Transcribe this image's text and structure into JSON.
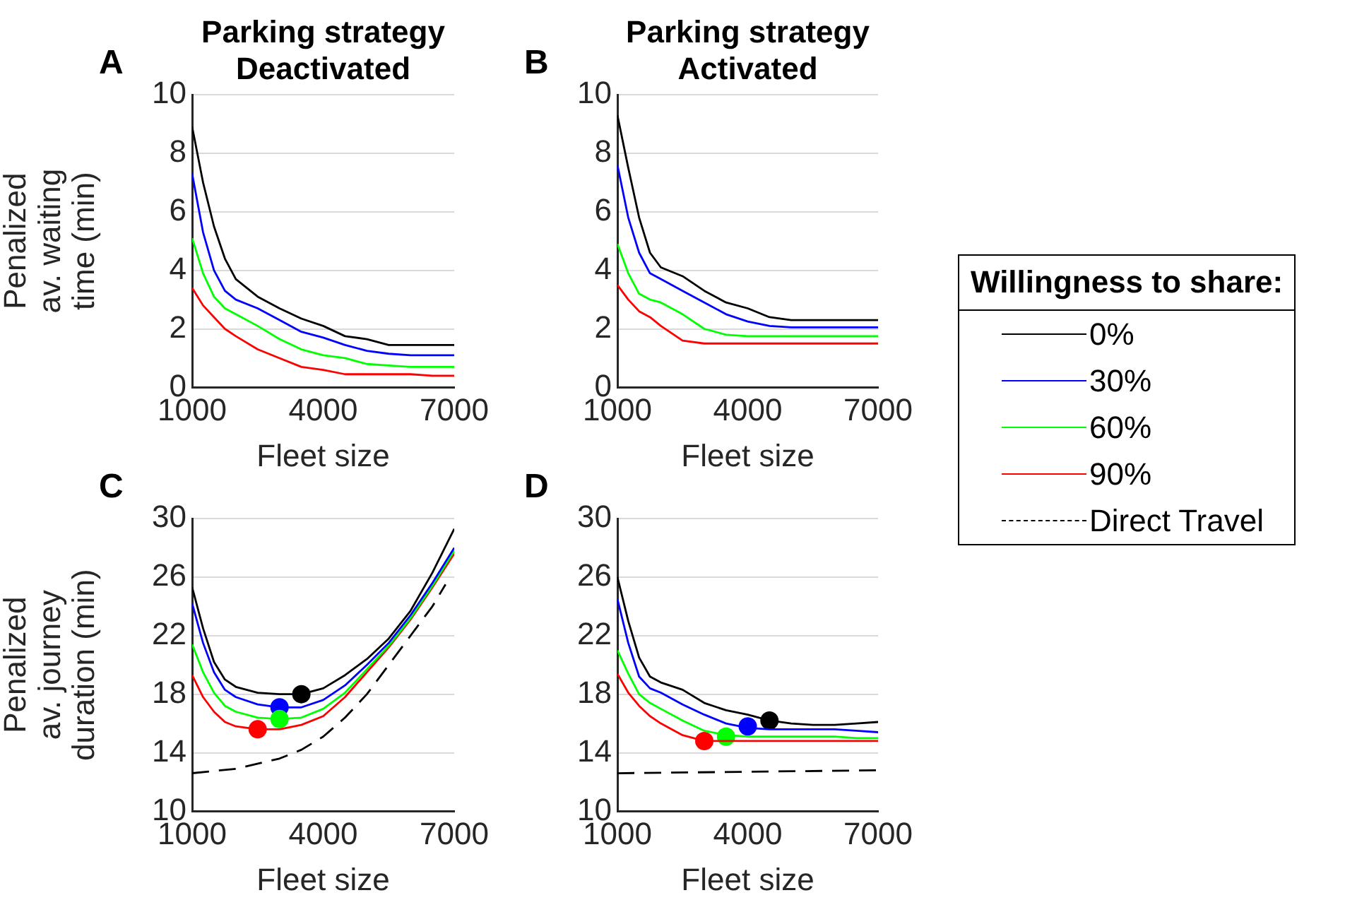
{
  "chart_data": [
    {
      "type": "line",
      "title": "Parking strategy",
      "subtitle": "Deactivated",
      "annotations": [
        "A"
      ],
      "xlabel": "Fleet size",
      "ylabel": "Penalized av. waiting time (min)",
      "xlim": [
        1000,
        7000
      ],
      "xticks": [
        1000,
        4000,
        7000
      ],
      "ylim": [
        0,
        10
      ],
      "yticks": [
        0,
        2,
        4,
        6,
        8,
        10
      ],
      "grid": "y",
      "legend": false,
      "x": [
        1000,
        1250,
        1500,
        1750,
        2000,
        2500,
        3000,
        3500,
        4000,
        4500,
        5000,
        5500,
        6000,
        6500,
        7000
      ],
      "series": [
        {
          "color": "#000000",
          "values": [
            8.9,
            7.0,
            5.5,
            4.4,
            3.7,
            3.1,
            2.7,
            2.35,
            2.1,
            1.75,
            1.65,
            1.45,
            1.45,
            1.45,
            1.45
          ]
        },
        {
          "color": "#0000ff",
          "values": [
            7.3,
            5.3,
            4.0,
            3.3,
            3.0,
            2.7,
            2.3,
            1.9,
            1.7,
            1.45,
            1.25,
            1.15,
            1.1,
            1.1,
            1.1
          ]
        },
        {
          "color": "#00ff00",
          "values": [
            5.1,
            3.9,
            3.1,
            2.7,
            2.5,
            2.1,
            1.65,
            1.3,
            1.1,
            1.0,
            0.8,
            0.75,
            0.7,
            0.7,
            0.7
          ]
        },
        {
          "color": "#ff0000",
          "values": [
            3.4,
            2.8,
            2.4,
            2.0,
            1.75,
            1.3,
            1.0,
            0.7,
            0.6,
            0.45,
            0.45,
            0.45,
            0.45,
            0.4,
            0.4
          ]
        }
      ]
    },
    {
      "type": "line",
      "title": "Parking strategy",
      "subtitle": "Activated",
      "annotations": [
        "B"
      ],
      "xlabel": "Fleet size",
      "xlim": [
        1000,
        7000
      ],
      "xticks": [
        1000,
        4000,
        7000
      ],
      "ylim": [
        0,
        10
      ],
      "yticks": [
        0,
        2,
        4,
        6,
        8,
        10
      ],
      "grid": "y",
      "legend": false,
      "x": [
        1000,
        1250,
        1500,
        1750,
        2000,
        2500,
        3000,
        3500,
        4000,
        4500,
        5000,
        5500,
        6000,
        6500,
        7000
      ],
      "series": [
        {
          "color": "#000000",
          "values": [
            9.3,
            7.5,
            5.8,
            4.6,
            4.1,
            3.8,
            3.3,
            2.9,
            2.7,
            2.4,
            2.3,
            2.3,
            2.3,
            2.3,
            2.3
          ]
        },
        {
          "color": "#0000ff",
          "values": [
            7.6,
            5.8,
            4.6,
            3.9,
            3.7,
            3.3,
            2.9,
            2.5,
            2.25,
            2.1,
            2.05,
            2.05,
            2.05,
            2.05,
            2.05
          ]
        },
        {
          "color": "#00ff00",
          "values": [
            4.9,
            3.9,
            3.2,
            3.0,
            2.9,
            2.5,
            2.0,
            1.8,
            1.75,
            1.75,
            1.75,
            1.75,
            1.75,
            1.75,
            1.75
          ]
        },
        {
          "color": "#ff0000",
          "values": [
            3.5,
            3.0,
            2.6,
            2.4,
            2.1,
            1.6,
            1.5,
            1.5,
            1.5,
            1.5,
            1.5,
            1.5,
            1.5,
            1.5,
            1.5
          ]
        }
      ]
    },
    {
      "type": "line",
      "annotations": [
        "C"
      ],
      "xlabel": "Fleet size",
      "ylabel": "Penalized av. journey duration (min)",
      "xlim": [
        1000,
        7000
      ],
      "xticks": [
        1000,
        4000,
        7000
      ],
      "ylim": [
        10,
        30
      ],
      "yticks": [
        10,
        14,
        18,
        22,
        26,
        30
      ],
      "grid": "y",
      "legend": false,
      "x": [
        1000,
        1250,
        1500,
        1750,
        2000,
        2500,
        3000,
        3500,
        4000,
        4500,
        5000,
        5500,
        6000,
        6500,
        7000
      ],
      "series": [
        {
          "color": "#000000",
          "values": [
            25.3,
            22.5,
            20.2,
            19.0,
            18.5,
            18.1,
            18.0,
            18.0,
            18.4,
            19.3,
            20.4,
            21.8,
            23.7,
            26.3,
            29.3
          ]
        },
        {
          "color": "#0000ff",
          "values": [
            24.2,
            21.5,
            19.5,
            18.3,
            17.8,
            17.3,
            17.1,
            17.1,
            17.6,
            18.6,
            20.0,
            21.5,
            23.4,
            25.6,
            28.0
          ]
        },
        {
          "color": "#00ff00",
          "values": [
            21.4,
            19.5,
            18.1,
            17.2,
            16.8,
            16.4,
            16.3,
            16.4,
            17.0,
            18.1,
            19.7,
            21.3,
            23.2,
            25.4,
            27.8
          ]
        },
        {
          "color": "#ff0000",
          "values": [
            19.3,
            17.8,
            16.8,
            16.1,
            15.8,
            15.6,
            15.6,
            15.9,
            16.5,
            17.8,
            19.5,
            21.2,
            23.1,
            25.3,
            27.6
          ]
        },
        {
          "color": "#000000",
          "line_style": "dashed",
          "x": [
            1000,
            2000,
            3000,
            3500,
            4000,
            4500,
            5000,
            5500,
            6000,
            6500,
            6800
          ],
          "values": [
            12.6,
            12.9,
            13.6,
            14.2,
            15.1,
            16.4,
            18.0,
            20.0,
            22.0,
            24.0,
            25.5
          ]
        },
        {
          "type": "scatter",
          "marker": "circle",
          "x": [
            3500,
            3000,
            3000,
            2500
          ],
          "values": [
            18.0,
            17.1,
            16.3,
            15.6
          ],
          "colors": [
            "#000000",
            "#0000ff",
            "#00ff00",
            "#ff0000"
          ]
        }
      ]
    },
    {
      "type": "line",
      "annotations": [
        "D"
      ],
      "xlabel": "Fleet size",
      "xlim": [
        1000,
        7000
      ],
      "xticks": [
        1000,
        4000,
        7000
      ],
      "ylim": [
        10,
        30
      ],
      "yticks": [
        10,
        14,
        18,
        22,
        26,
        30
      ],
      "grid": "y",
      "legend": "top right",
      "legend_title": "Willingness to share:",
      "x": [
        1000,
        1250,
        1500,
        1750,
        2000,
        2500,
        3000,
        3500,
        4000,
        4500,
        5000,
        5500,
        6000,
        6500,
        7000
      ],
      "series": [
        {
          "name": "0%",
          "color": "#000000",
          "values": [
            26.0,
            23.0,
            20.5,
            19.2,
            18.8,
            18.3,
            17.4,
            16.9,
            16.6,
            16.2,
            16.0,
            15.9,
            15.9,
            16.0,
            16.1
          ]
        },
        {
          "name": "30%",
          "color": "#0000ff",
          "values": [
            24.5,
            21.5,
            19.2,
            18.4,
            18.1,
            17.3,
            16.6,
            16.0,
            15.7,
            15.6,
            15.6,
            15.6,
            15.6,
            15.5,
            15.4
          ]
        },
        {
          "name": "60%",
          "color": "#00ff00",
          "values": [
            21.0,
            19.4,
            18.0,
            17.4,
            17.0,
            16.2,
            15.5,
            15.2,
            15.1,
            15.1,
            15.1,
            15.1,
            15.1,
            15.0,
            15.0
          ]
        },
        {
          "name": "90%",
          "color": "#ff0000",
          "values": [
            19.4,
            18.1,
            17.2,
            16.5,
            16.0,
            15.2,
            14.8,
            14.8,
            14.8,
            14.8,
            14.8,
            14.8,
            14.8,
            14.8,
            14.8
          ]
        },
        {
          "name": "Direct Travel",
          "color": "#000000",
          "line_style": "dashed",
          "x": [
            1000,
            7000
          ],
          "values": [
            12.6,
            12.8
          ]
        },
        {
          "type": "scatter",
          "marker": "circle",
          "x": [
            3000,
            3500,
            4000,
            4500
          ],
          "values": [
            14.8,
            15.1,
            15.8,
            16.2
          ],
          "colors": [
            "#ff0000",
            "#00ff00",
            "#0000ff",
            "#000000"
          ]
        }
      ]
    }
  ]
}
